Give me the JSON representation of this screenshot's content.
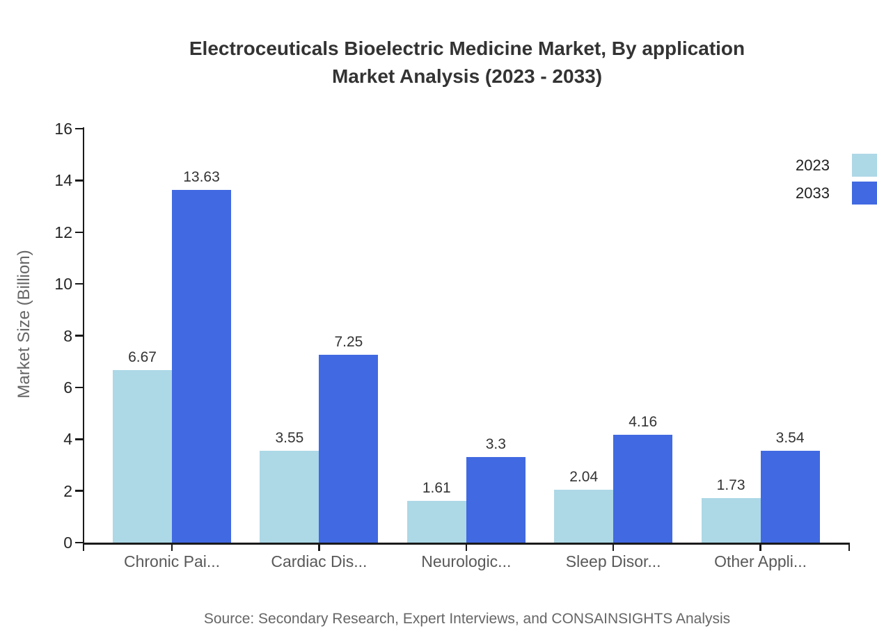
{
  "title": {
    "line1": "Electroceuticals Bioelectric Medicine Market, By application",
    "line2": "Market Analysis (2023 - 2033)"
  },
  "source": "Source: Secondary Research, Expert Interviews, and CONSAINSIGHTS Analysis",
  "legend": {
    "items": [
      {
        "label": "2023",
        "color": "#ADD8E6"
      },
      {
        "label": "2033",
        "color": "#4169E1"
      }
    ]
  },
  "chart_data": {
    "type": "bar",
    "title": "Electroceuticals Bioelectric Medicine Market, By application Market Analysis (2023 - 2033)",
    "categories": [
      "Chronic Pai...",
      "Cardiac Dis...",
      "Neurologic...",
      "Sleep Disor...",
      "Other Appli..."
    ],
    "series": [
      {
        "name": "2023",
        "color": "#ADD8E6",
        "values": [
          6.67,
          3.55,
          1.61,
          2.04,
          1.73
        ]
      },
      {
        "name": "2033",
        "color": "#4169E1",
        "values": [
          13.63,
          7.25,
          3.3,
          4.16,
          3.54
        ]
      }
    ],
    "xlabel": "",
    "ylabel": "Market Size (Billion)",
    "ylim": [
      0,
      16
    ],
    "ytick_step": 2,
    "grid": false,
    "legend_position": "top-right",
    "axis_color": "#1a1a1a",
    "value_label_color": "#333333"
  }
}
